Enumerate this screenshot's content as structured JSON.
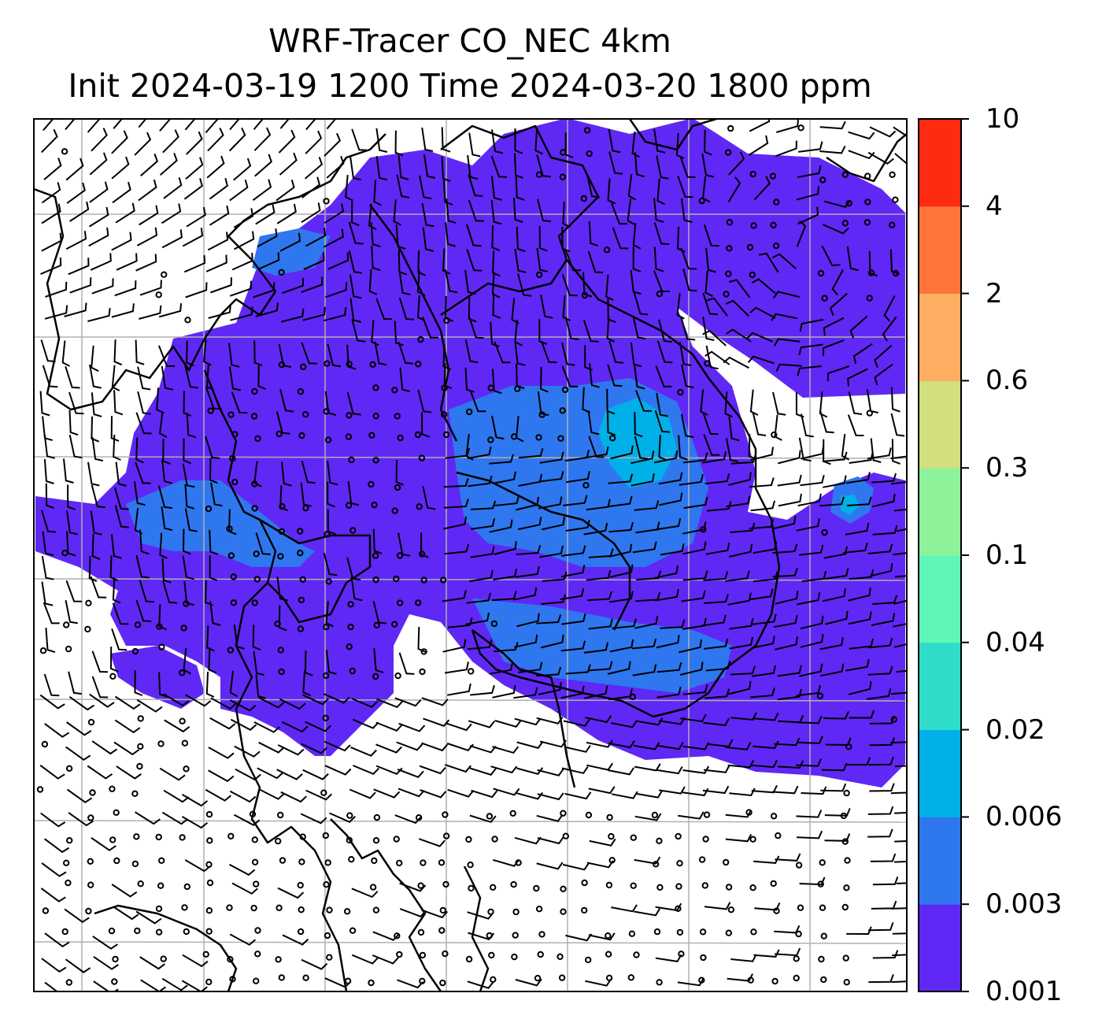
{
  "title": {
    "line1": "WRF-Tracer CO_NEC 4km",
    "line2": "Init 2024-03-19 1200 Time 2024-03-20 1800 ppm"
  },
  "colorbar": {
    "levels": [
      "0.001",
      "0.003",
      "0.006",
      "0.02",
      "0.04",
      "0.1",
      "0.3",
      "0.6",
      "2",
      "4",
      "10"
    ],
    "colors": [
      "#5f28f5",
      "#2f77ef",
      "#00b0e8",
      "#2fdcc9",
      "#5ef7b8",
      "#8ef29a",
      "#d2df7c",
      "#fdae61",
      "#ff7438",
      "#ff2a12"
    ]
  },
  "map": {
    "tracer_fill_colors": {
      "base": "#5f28f5",
      "mid": "#2f77ef",
      "high": "#00b0e8"
    },
    "gridline_color": "#b0b0b0",
    "coastline_color": "#000000",
    "wind_barb_color": "#000000",
    "wind_barbs": "shown",
    "calm_wind_circles": "shown"
  }
}
